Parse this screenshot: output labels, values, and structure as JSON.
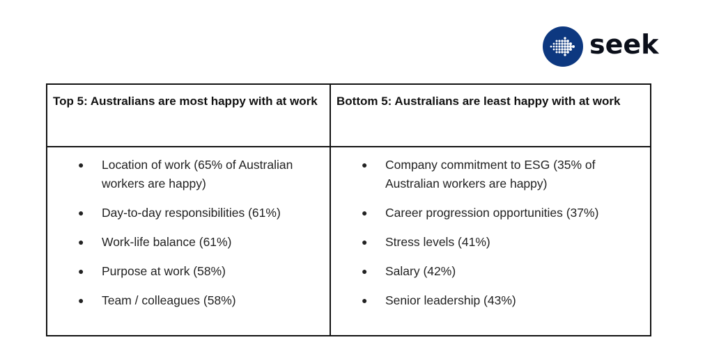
{
  "logo": {
    "text": "seek",
    "icon": "seek-logo-icon",
    "color": "#0d3880"
  },
  "left": {
    "header": "Top 5: Australians are most happy with at work",
    "items": [
      "Location of work (65% of Australian workers are happy)",
      "Day-to-day responsibilities (61%)",
      "Work-life balance (61%)",
      "Purpose at work (58%)",
      "Team / colleagues (58%)"
    ]
  },
  "right": {
    "header": "Bottom 5: Australians are least happy with at work",
    "items": [
      "Company commitment to ESG (35% of Australian workers are happy)",
      "Career progression opportunities (37%)",
      "Stress levels (41%)",
      "Salary (42%)",
      "Senior leadership (43%)"
    ]
  }
}
